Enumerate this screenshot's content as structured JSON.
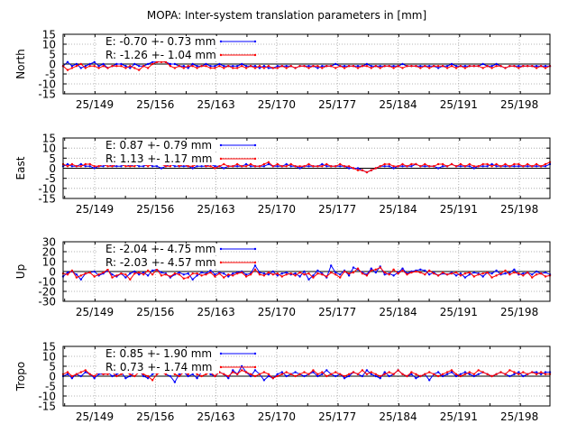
{
  "title": "MOPA: Inter-system translation parameters in [mm]",
  "x_tick_labels": [
    "25/149",
    "25/156",
    "25/163",
    "25/170",
    "25/177",
    "25/184",
    "25/191",
    "25/198"
  ],
  "colors": {
    "E": "#0000ff",
    "R": "#ff0000",
    "zero_line": "#000000",
    "grid": "#a0a0a0"
  },
  "chart_data": [
    {
      "type": "line",
      "ylabel": "North",
      "ylim": [
        -15,
        15
      ],
      "yticks": [
        15,
        10,
        5,
        0,
        -5,
        -10,
        -15
      ],
      "grid": true,
      "legend_position": "top-left",
      "legend": [
        {
          "key": "E",
          "label": "E:  -0.70 +- 0.73 mm"
        },
        {
          "key": "R",
          "label": "R:  -1.26 +- 1.04 mm"
        }
      ],
      "series": [
        {
          "name": "E",
          "values": [
            -1,
            1,
            -1,
            0,
            -2,
            -1,
            0,
            1,
            -1,
            0,
            -2,
            -1,
            0,
            0,
            -1,
            -2,
            0,
            -1,
            -1,
            0,
            1,
            1,
            2,
            1,
            0,
            0,
            -1,
            -1,
            -2,
            0,
            -1,
            -1,
            0,
            -1,
            -1,
            0,
            -1,
            -1,
            -1,
            -1,
            0,
            -1,
            -1,
            -1,
            -2,
            -1,
            -2,
            -2,
            -1,
            -1,
            -1,
            -1,
            -2,
            -1,
            -1,
            -1,
            -1,
            -2,
            -1,
            -1,
            -1,
            0,
            -1,
            -1,
            -1,
            -1,
            -1,
            -1,
            0,
            -1,
            -1,
            -1,
            -1,
            -1,
            -1,
            -1,
            0,
            -1,
            -1,
            -1,
            -1,
            -1,
            -1,
            -1,
            -2,
            -1,
            -1,
            0,
            -1,
            -1,
            -1,
            -1,
            -1,
            -1,
            0,
            -1,
            -1,
            0,
            -1,
            -2,
            -1,
            -1,
            -1,
            -1,
            -1,
            -1,
            -1,
            -1,
            -1,
            -1
          ]
        },
        {
          "name": "R",
          "values": [
            -1,
            -3,
            -2,
            -1,
            0,
            -2,
            -1,
            -1,
            -2,
            -1,
            -2,
            -1,
            -1,
            -1,
            -2,
            -1,
            -2,
            -3,
            -1,
            -2,
            0,
            1,
            1,
            1,
            -1,
            -2,
            -1,
            -2,
            -1,
            -1,
            -2,
            -1,
            -1,
            -2,
            -2,
            -1,
            -2,
            -1,
            -2,
            -2,
            -1,
            -2,
            -1,
            -2,
            -1,
            -2,
            -1,
            -2,
            -2,
            -1,
            -2,
            -1,
            -2,
            -1,
            -1,
            -2,
            -1,
            -1,
            -2,
            -1,
            -1,
            -2,
            -1,
            -2,
            -1,
            -1,
            -2,
            -1,
            -1,
            -2,
            -1,
            -2,
            -1,
            -1,
            -2,
            -1,
            -2,
            -1,
            -1,
            -1,
            -2,
            -1,
            -2,
            -1,
            -1,
            -1,
            -2,
            -1,
            -2,
            -1,
            -2,
            -1,
            -1,
            -1,
            -2,
            -1,
            -2,
            -1,
            -1,
            -2,
            -1,
            -1,
            -2,
            -1,
            -1,
            -1,
            -2,
            -1,
            -2,
            -1
          ]
        }
      ]
    },
    {
      "type": "line",
      "ylabel": "East",
      "ylim": [
        -15,
        15
      ],
      "yticks": [
        15,
        10,
        5,
        0,
        -5,
        -10,
        -15
      ],
      "grid": true,
      "legend_position": "top-left",
      "legend": [
        {
          "key": "E",
          "label": "E:   0.87 +- 0.79 mm"
        },
        {
          "key": "R",
          "label": "R:   1.13 +- 1.17 mm"
        }
      ],
      "series": [
        {
          "name": "E",
          "values": [
            1,
            2,
            1,
            1,
            2,
            1,
            1,
            0,
            1,
            1,
            2,
            1,
            1,
            1,
            2,
            1,
            2,
            1,
            1,
            2,
            1,
            1,
            0,
            1,
            2,
            1,
            1,
            1,
            1,
            0,
            1,
            1,
            1,
            2,
            1,
            1,
            0,
            1,
            1,
            1,
            1,
            2,
            1,
            1,
            1,
            1,
            2,
            1,
            1,
            1,
            2,
            1,
            1,
            0,
            1,
            1,
            1,
            1,
            2,
            1,
            1,
            1,
            1,
            1,
            0,
            0,
            0,
            -1,
            -2,
            -1,
            0,
            1,
            1,
            1,
            0,
            1,
            1,
            1,
            1,
            2,
            1,
            1,
            1,
            1,
            0,
            1,
            1,
            2,
            1,
            1,
            1,
            1,
            0,
            1,
            1,
            1,
            2,
            1,
            1,
            1,
            1,
            1,
            1,
            1,
            1,
            1,
            1,
            1,
            1,
            2
          ]
        },
        {
          "name": "R",
          "values": [
            2,
            1,
            2,
            1,
            1,
            2,
            2,
            1,
            1,
            2,
            1,
            1,
            2,
            2,
            1,
            1,
            1,
            3,
            2,
            1,
            2,
            4,
            2,
            1,
            1,
            3,
            1,
            2,
            1,
            1,
            2,
            3,
            1,
            1,
            0,
            1,
            2,
            1,
            1,
            2,
            1,
            1,
            2,
            1,
            1,
            2,
            3,
            1,
            2,
            1,
            1,
            2,
            1,
            1,
            1,
            2,
            1,
            1,
            1,
            2,
            1,
            1,
            2,
            1,
            1,
            0,
            -1,
            -1,
            -2,
            -1,
            0,
            1,
            2,
            2,
            1,
            1,
            2,
            1,
            2,
            2,
            1,
            2,
            1,
            1,
            2,
            2,
            1,
            2,
            1,
            2,
            1,
            2,
            1,
            1,
            2,
            2,
            1,
            2,
            1,
            2,
            1,
            2,
            2,
            1,
            2,
            1,
            2,
            1,
            2,
            3
          ]
        }
      ]
    },
    {
      "type": "line",
      "ylabel": "Up",
      "ylim": [
        -30,
        30
      ],
      "yticks": [
        30,
        20,
        10,
        0,
        -10,
        -20,
        -30
      ],
      "grid": true,
      "legend_position": "top-left",
      "legend": [
        {
          "key": "E",
          "label": "E:  -2.04 +- 4.75 mm"
        },
        {
          "key": "R",
          "label": "R:  -2.03 +- 4.57 mm"
        }
      ],
      "series": [
        {
          "name": "E",
          "values": [
            -5,
            -1,
            0,
            -3,
            -8,
            -2,
            -1,
            0,
            -4,
            -2,
            1,
            -3,
            -5,
            -2,
            -6,
            -2,
            0,
            -3,
            -1,
            -4,
            1,
            2,
            -1,
            -2,
            -6,
            -3,
            -1,
            -3,
            -2,
            -8,
            -4,
            -1,
            -2,
            1,
            -3,
            -1,
            -2,
            -5,
            -2,
            -1,
            0,
            -3,
            -2,
            6,
            -1,
            -2,
            -3,
            0,
            -4,
            -2,
            -1,
            -3,
            -2,
            -5,
            0,
            -8,
            -4,
            1,
            -2,
            -6,
            6,
            -1,
            -3,
            1,
            -4,
            4,
            2,
            -1,
            -3,
            3,
            -1,
            5,
            -3,
            -2,
            -4,
            -1,
            3,
            -2,
            0,
            1,
            2,
            1,
            -3,
            -1,
            -4,
            -2,
            -3,
            -1,
            -4,
            -2,
            -6,
            -3,
            -1,
            -2,
            -5,
            -1,
            -2,
            1,
            -3,
            -2,
            -1,
            2,
            -3,
            -2,
            -1,
            -3,
            0,
            -2,
            -1,
            -3
          ]
        },
        {
          "name": "R",
          "values": [
            -2,
            -3,
            1,
            -6,
            -4,
            -2,
            -1,
            -5,
            -3,
            -1,
            2,
            -6,
            -4,
            -2,
            -3,
            -8,
            -2,
            -1,
            -3,
            1,
            -3,
            2,
            -4,
            -3,
            -5,
            -2,
            -3,
            -7,
            -6,
            -2,
            -2,
            -4,
            -3,
            -1,
            -5,
            -2,
            -6,
            -3,
            -4,
            -2,
            -1,
            -5,
            -3,
            2,
            -3,
            -4,
            -1,
            -3,
            -2,
            -5,
            -3,
            -2,
            -4,
            -1,
            -3,
            -2,
            -6,
            -2,
            -3,
            -5,
            -1,
            -3,
            -6,
            0,
            -2,
            -1,
            3,
            -2,
            -4,
            1,
            2,
            4,
            -1,
            -3,
            2,
            -2,
            1,
            -3,
            -1,
            0,
            -1,
            -3,
            1,
            -2,
            -4,
            -1,
            -3,
            -2,
            -1,
            -4,
            -2,
            -1,
            -5,
            -3,
            -2,
            -1,
            -6,
            -4,
            -2,
            1,
            -3,
            -1,
            -2,
            -4,
            -1,
            -6,
            -3,
            -2,
            -5,
            -4
          ]
        }
      ]
    },
    {
      "type": "line",
      "ylabel": "Tropo",
      "ylim": [
        -15,
        15
      ],
      "yticks": [
        15,
        10,
        5,
        0,
        -5,
        -10,
        -15
      ],
      "grid": true,
      "legend_position": "top-left",
      "legend": [
        {
          "key": "E",
          "label": "E:   0.85 +- 1.90 mm"
        },
        {
          "key": "R",
          "label": "R:   0.73 +- 1.74 mm"
        }
      ],
      "series": [
        {
          "name": "E",
          "values": [
            0,
            1,
            -1,
            1,
            0,
            2,
            1,
            -1,
            1,
            1,
            2,
            0,
            1,
            2,
            -1,
            0,
            2,
            3,
            0,
            -1,
            1,
            2,
            3,
            1,
            0,
            -3,
            1,
            2,
            0,
            1,
            -1,
            2,
            4,
            1,
            0,
            2,
            1,
            -1,
            3,
            1,
            5,
            2,
            0,
            3,
            1,
            -2,
            0,
            -1,
            1,
            2,
            0,
            1,
            2,
            1,
            0,
            1,
            2,
            0,
            1,
            3,
            1,
            0,
            1,
            -1,
            0,
            2,
            1,
            0,
            3,
            1,
            0,
            -1,
            2,
            0,
            1,
            3,
            1,
            0,
            1,
            -1,
            0,
            1,
            -2,
            1,
            2,
            0,
            1,
            2,
            0,
            1,
            2,
            1,
            0,
            1,
            2,
            1,
            0,
            1,
            2,
            1,
            0,
            1,
            2,
            0,
            1,
            2,
            2,
            1,
            2,
            2
          ]
        },
        {
          "name": "R",
          "values": [
            1,
            2,
            0,
            1,
            2,
            3,
            1,
            0,
            2,
            1,
            1,
            2,
            0,
            1,
            2,
            1,
            0,
            2,
            1,
            0,
            -2,
            1,
            2,
            1,
            3,
            1,
            0,
            2,
            1,
            3,
            1,
            0,
            1,
            2,
            0,
            2,
            1,
            0,
            2,
            1,
            3,
            2,
            1,
            0,
            1,
            2,
            1,
            -1,
            0,
            1,
            2,
            1,
            0,
            1,
            2,
            1,
            3,
            1,
            2,
            0,
            1,
            2,
            1,
            0,
            1,
            2,
            1,
            3,
            1,
            2,
            1,
            0,
            1,
            2,
            1,
            3,
            1,
            0,
            2,
            1,
            0,
            1,
            2,
            1,
            0,
            1,
            2,
            3,
            1,
            0,
            1,
            2,
            1,
            3,
            2,
            1,
            0,
            1,
            2,
            1,
            3,
            2,
            1,
            2,
            1,
            2,
            1,
            2,
            1,
            1
          ]
        }
      ]
    }
  ]
}
